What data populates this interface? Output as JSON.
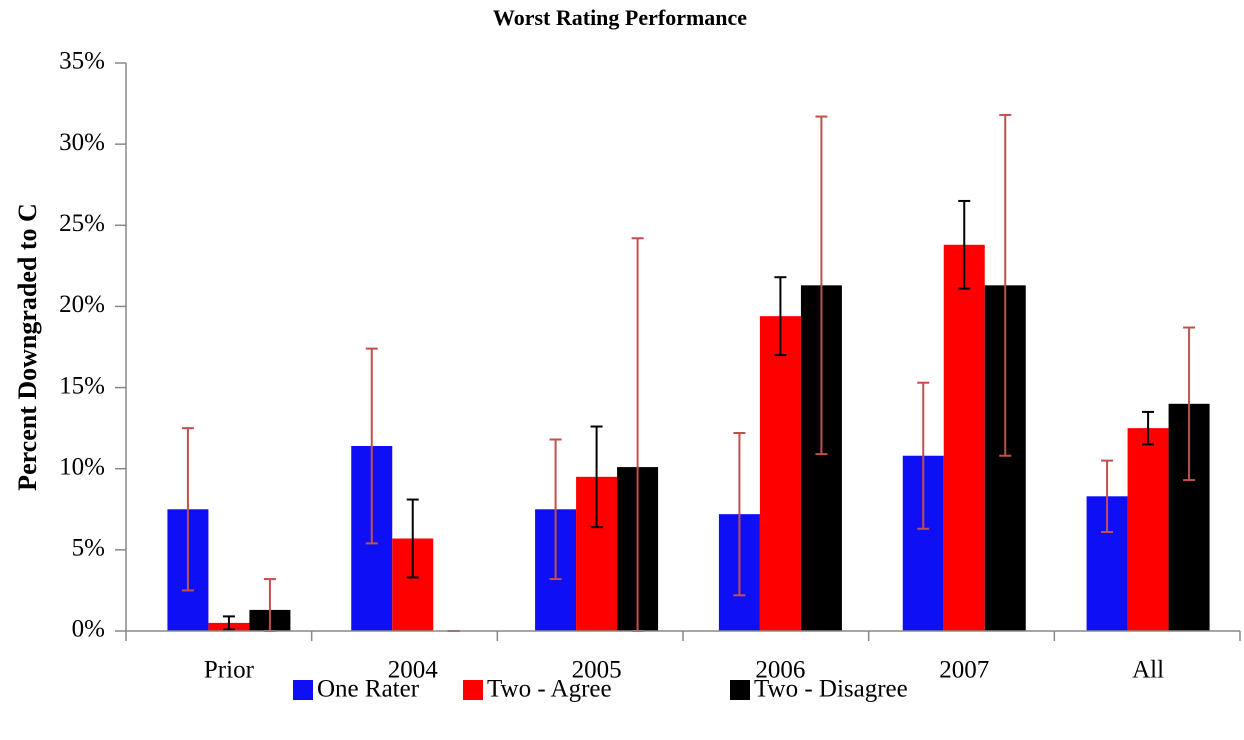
{
  "chart_data": {
    "type": "bar",
    "title": "Worst Rating Performance",
    "y_label": "Percent Downgraded to C",
    "categories": [
      "Prior",
      "2004",
      "2005",
      "2006",
      "2007",
      "All"
    ],
    "series": [
      {
        "name": "One Rater",
        "color": "#0f0ff5",
        "error_color": "#c0504d",
        "values": [
          7.5,
          11.4,
          7.5,
          7.2,
          10.8,
          8.3
        ],
        "errors": [
          5.0,
          6.0,
          4.3,
          5.0,
          4.5,
          2.2
        ]
      },
      {
        "name": "Two - Agree",
        "color": "#ff0000",
        "error_color": "#000000",
        "values": [
          0.5,
          5.7,
          9.5,
          19.4,
          23.8,
          12.5
        ],
        "errors": [
          0.4,
          2.4,
          3.1,
          2.4,
          2.7,
          1.0
        ]
      },
      {
        "name": "Two - Disagree",
        "color": "#000000",
        "error_color": "#c0504d",
        "values": [
          1.3,
          0,
          10.1,
          21.3,
          21.3,
          14.0
        ],
        "errors": [
          1.9,
          0,
          14.1,
          10.4,
          10.5,
          4.7
        ]
      }
    ],
    "ylim": [
      0,
      35
    ],
    "yticks": [
      {
        "value": 0,
        "label": "0%"
      },
      {
        "value": 5,
        "label": "5%"
      },
      {
        "value": 10,
        "label": "10%"
      },
      {
        "value": 15,
        "label": "15%"
      },
      {
        "value": 20,
        "label": "20%"
      },
      {
        "value": 25,
        "label": "25%"
      },
      {
        "value": 30,
        "label": "30%"
      },
      {
        "value": 35,
        "label": "35%"
      }
    ],
    "grid": false,
    "legend": "bottom"
  }
}
